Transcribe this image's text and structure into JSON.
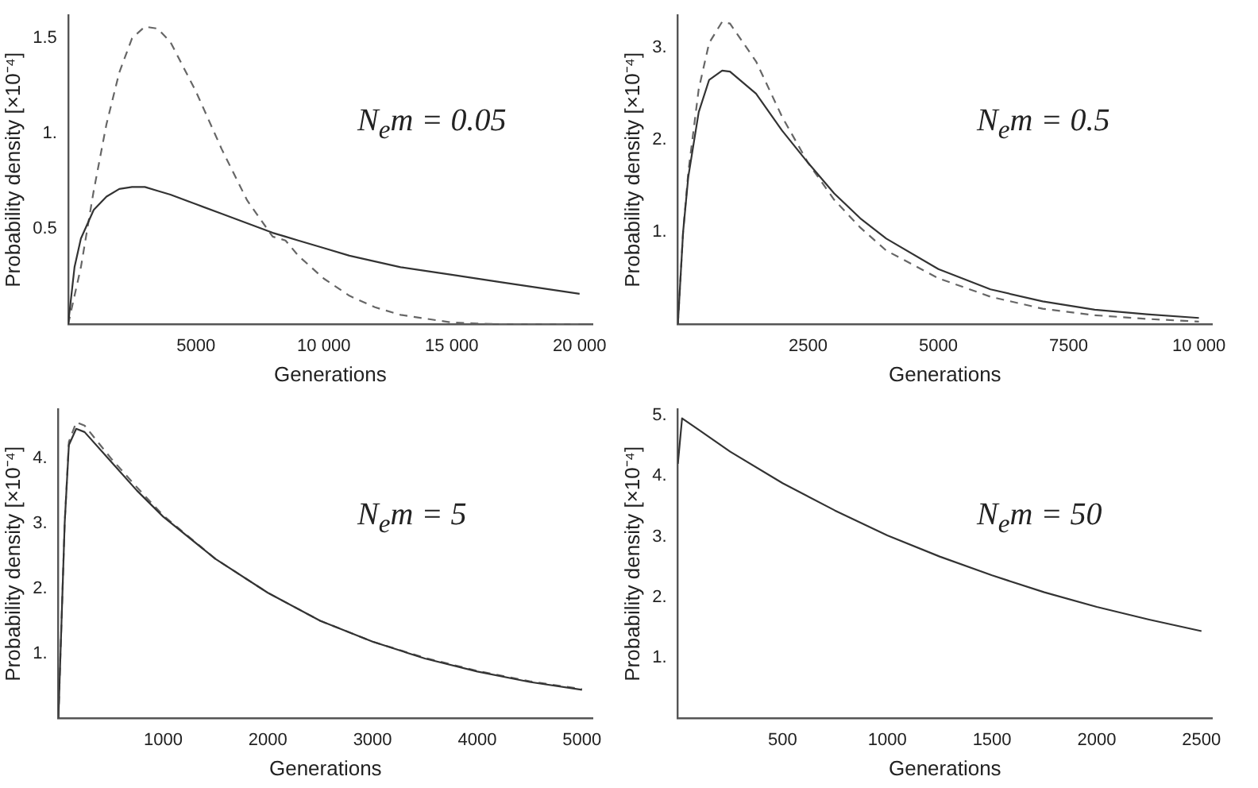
{
  "chart_data": [
    {
      "type": "line",
      "xlabel": "Generations",
      "ylabel": "Probability density [×10⁻⁴]",
      "annotations": [
        "N$_{e}$m = 0.05"
      ],
      "xlim": [
        0,
        20500
      ],
      "ylim": [
        0,
        1.62
      ],
      "xticks": [
        5000,
        {
          "value": 10000,
          "label": "10 000"
        },
        {
          "value": 15000,
          "label": "15 000"
        },
        {
          "value": 20000,
          "label": "20 000"
        }
      ],
      "yticks": [
        0.5,
        {
          "value": 1,
          "label": "1."
        },
        1.5
      ],
      "grid": false,
      "legend": false,
      "x": [
        0,
        250,
        500,
        1000,
        1500,
        2000,
        2500,
        3000,
        3500,
        4000,
        5000,
        6000,
        7000,
        8000,
        8500,
        9000,
        10000,
        11000,
        12000,
        13000,
        14000,
        15000,
        17000,
        20000
      ],
      "series": [
        {
          "color": "#333333",
          "line_style": "solid",
          "values": [
            0,
            0.3,
            0.45,
            0.6,
            0.67,
            0.71,
            0.72,
            0.72,
            0.7,
            0.68,
            0.63,
            0.58,
            0.53,
            0.48,
            0.46,
            0.44,
            0.4,
            0.36,
            0.33,
            0.3,
            0.28,
            0.26,
            0.22,
            0.16
          ]
        },
        {
          "color": "#666666",
          "line_style": "dashed",
          "values": [
            0,
            0.15,
            0.3,
            0.7,
            1.05,
            1.32,
            1.5,
            1.56,
            1.55,
            1.48,
            1.22,
            0.92,
            0.65,
            0.46,
            0.44,
            0.36,
            0.24,
            0.15,
            0.09,
            0.05,
            0.03,
            0.01,
            0,
            0
          ]
        }
      ]
    },
    {
      "type": "line",
      "xlabel": "Generations",
      "ylabel": "Probability density [×10⁻⁴]",
      "annotations": [
        "N$_{e}$m = 0.5"
      ],
      "xlim": [
        0,
        10250
      ],
      "ylim": [
        0,
        3.35
      ],
      "xticks": [
        2500,
        5000,
        7500,
        {
          "value": 10000,
          "label": "10 000"
        }
      ],
      "yticks": [
        {
          "value": 1,
          "label": "1."
        },
        {
          "value": 2,
          "label": "2."
        },
        {
          "value": 3,
          "label": "3."
        }
      ],
      "grid": false,
      "legend": false,
      "x": [
        0,
        100,
        200,
        400,
        600,
        850,
        1000,
        1500,
        2000,
        2500,
        3000,
        3500,
        4000,
        5000,
        6000,
        7000,
        8000,
        9000,
        10000
      ],
      "series": [
        {
          "color": "#333333",
          "line_style": "solid",
          "values": [
            0,
            1.0,
            1.6,
            2.3,
            2.65,
            2.75,
            2.74,
            2.5,
            2.1,
            1.75,
            1.42,
            1.15,
            0.93,
            0.6,
            0.38,
            0.25,
            0.16,
            0.11,
            0.07
          ]
        },
        {
          "color": "#666666",
          "line_style": "dashed",
          "values": [
            0,
            1.0,
            1.65,
            2.55,
            3.05,
            3.28,
            3.26,
            2.85,
            2.25,
            1.75,
            1.35,
            1.05,
            0.8,
            0.5,
            0.3,
            0.17,
            0.1,
            0.06,
            0.03
          ]
        }
      ]
    },
    {
      "type": "line",
      "xlabel": "Generations",
      "ylabel": "Probability density [×10⁻⁴]",
      "annotations": [
        "N$_{e}$m = 5"
      ],
      "xlim": [
        0,
        5100
      ],
      "ylim": [
        0,
        4.75
      ],
      "xticks": [
        1000,
        2000,
        3000,
        4000,
        5000
      ],
      "yticks": [
        {
          "value": 1,
          "label": "1."
        },
        {
          "value": 2,
          "label": "2."
        },
        {
          "value": 3,
          "label": "3."
        },
        {
          "value": 4,
          "label": "4."
        }
      ],
      "grid": false,
      "legend": false,
      "x": [
        0,
        30,
        60,
        100,
        170,
        250,
        500,
        750,
        1000,
        1500,
        2000,
        2500,
        3000,
        3500,
        4000,
        4500,
        5000
      ],
      "series": [
        {
          "color": "#333333",
          "line_style": "solid",
          "values": [
            0,
            1.5,
            3.0,
            4.2,
            4.45,
            4.4,
            3.95,
            3.5,
            3.1,
            2.45,
            1.93,
            1.5,
            1.18,
            0.92,
            0.72,
            0.56,
            0.44
          ]
        },
        {
          "color": "#666666",
          "line_style": "dashed",
          "values": [
            0,
            1.5,
            3.0,
            4.25,
            4.55,
            4.5,
            4.0,
            3.55,
            3.12,
            2.45,
            1.93,
            1.5,
            1.18,
            0.93,
            0.73,
            0.57,
            0.45
          ]
        }
      ]
    },
    {
      "type": "line",
      "xlabel": "Generations",
      "ylabel": "Probability density [×10⁻⁴]",
      "annotations": [
        "N$_{e}$m = 50"
      ],
      "xlim": [
        0,
        2550
      ],
      "ylim": [
        0,
        5.1
      ],
      "xticks": [
        500,
        1000,
        1500,
        2000,
        2500
      ],
      "yticks": [
        {
          "value": 1,
          "label": "1."
        },
        {
          "value": 2,
          "label": "2."
        },
        {
          "value": 3,
          "label": "3."
        },
        {
          "value": 4,
          "label": "4."
        },
        {
          "value": 5,
          "label": "5."
        }
      ],
      "grid": false,
      "legend": false,
      "x": [
        0,
        20,
        100,
        250,
        500,
        750,
        1000,
        1250,
        1500,
        1750,
        2000,
        2250,
        2500
      ],
      "series": [
        {
          "color": "#333333",
          "line_style": "solid",
          "values": [
            4.2,
            4.95,
            4.76,
            4.4,
            3.88,
            3.43,
            3.02,
            2.67,
            2.36,
            2.08,
            1.84,
            1.63,
            1.44
          ]
        }
      ]
    }
  ]
}
